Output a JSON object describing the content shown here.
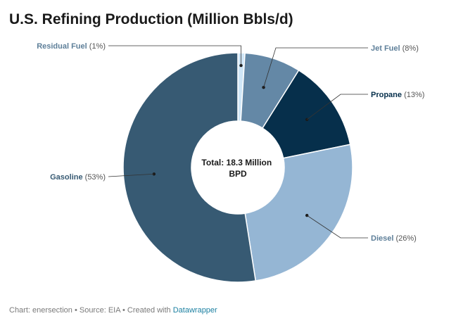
{
  "title": "U.S. Refining Production (Million Bbls/d)",
  "footer": {
    "chart_by": "Chart: enersection",
    "separator": " • ",
    "source": "Source: EIA",
    "created_with": "Created with ",
    "tool": "Datawrapper"
  },
  "chart_data": {
    "type": "pie",
    "variant": "donut",
    "center_label": [
      "Total: 18.3 Million",
      "BPD"
    ],
    "slices": [
      {
        "name": "Residual Fuel",
        "pct_label": "(1%)",
        "value": 1,
        "color": "#cfe6f7",
        "name_color": "#5e7f99"
      },
      {
        "name": "Jet Fuel",
        "pct_label": "(8%)",
        "value": 8,
        "color": "#6488a6",
        "name_color": "#5e7f99"
      },
      {
        "name": "Propane",
        "pct_label": "(13%)",
        "value": 13,
        "color": "#062f4b",
        "name_color": "#062f4b"
      },
      {
        "name": "Diesel",
        "pct_label": "(26%)",
        "value": 26,
        "color": "#95b6d4",
        "name_color": "#5e7f99"
      },
      {
        "name": "Gasoline",
        "pct_label": "(53%)",
        "value": 53,
        "color": "#375a73",
        "name_color": "#375a73"
      }
    ]
  }
}
